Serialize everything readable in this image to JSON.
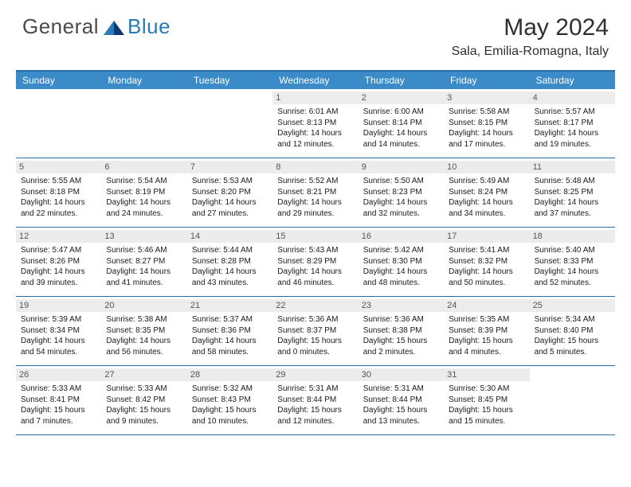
{
  "logo": {
    "text_general": "General",
    "text_blue": "Blue"
  },
  "title": "May 2024",
  "location": "Sala, Emilia-Romagna, Italy",
  "colors": {
    "header_bar": "#3b8bc9",
    "rule": "#2a6ea8",
    "daynum_bg": "#ececec",
    "logo_blue": "#2a7ab8",
    "text": "#1a1a1a"
  },
  "dow": [
    "Sunday",
    "Monday",
    "Tuesday",
    "Wednesday",
    "Thursday",
    "Friday",
    "Saturday"
  ],
  "weeks": [
    [
      {
        "n": "",
        "sr": "",
        "ss": "",
        "dl": ""
      },
      {
        "n": "",
        "sr": "",
        "ss": "",
        "dl": ""
      },
      {
        "n": "",
        "sr": "",
        "ss": "",
        "dl": ""
      },
      {
        "n": "1",
        "sr": "6:01 AM",
        "ss": "8:13 PM",
        "dl": "14 hours and 12 minutes."
      },
      {
        "n": "2",
        "sr": "6:00 AM",
        "ss": "8:14 PM",
        "dl": "14 hours and 14 minutes."
      },
      {
        "n": "3",
        "sr": "5:58 AM",
        "ss": "8:15 PM",
        "dl": "14 hours and 17 minutes."
      },
      {
        "n": "4",
        "sr": "5:57 AM",
        "ss": "8:17 PM",
        "dl": "14 hours and 19 minutes."
      }
    ],
    [
      {
        "n": "5",
        "sr": "5:55 AM",
        "ss": "8:18 PM",
        "dl": "14 hours and 22 minutes."
      },
      {
        "n": "6",
        "sr": "5:54 AM",
        "ss": "8:19 PM",
        "dl": "14 hours and 24 minutes."
      },
      {
        "n": "7",
        "sr": "5:53 AM",
        "ss": "8:20 PM",
        "dl": "14 hours and 27 minutes."
      },
      {
        "n": "8",
        "sr": "5:52 AM",
        "ss": "8:21 PM",
        "dl": "14 hours and 29 minutes."
      },
      {
        "n": "9",
        "sr": "5:50 AM",
        "ss": "8:23 PM",
        "dl": "14 hours and 32 minutes."
      },
      {
        "n": "10",
        "sr": "5:49 AM",
        "ss": "8:24 PM",
        "dl": "14 hours and 34 minutes."
      },
      {
        "n": "11",
        "sr": "5:48 AM",
        "ss": "8:25 PM",
        "dl": "14 hours and 37 minutes."
      }
    ],
    [
      {
        "n": "12",
        "sr": "5:47 AM",
        "ss": "8:26 PM",
        "dl": "14 hours and 39 minutes."
      },
      {
        "n": "13",
        "sr": "5:46 AM",
        "ss": "8:27 PM",
        "dl": "14 hours and 41 minutes."
      },
      {
        "n": "14",
        "sr": "5:44 AM",
        "ss": "8:28 PM",
        "dl": "14 hours and 43 minutes."
      },
      {
        "n": "15",
        "sr": "5:43 AM",
        "ss": "8:29 PM",
        "dl": "14 hours and 46 minutes."
      },
      {
        "n": "16",
        "sr": "5:42 AM",
        "ss": "8:30 PM",
        "dl": "14 hours and 48 minutes."
      },
      {
        "n": "17",
        "sr": "5:41 AM",
        "ss": "8:32 PM",
        "dl": "14 hours and 50 minutes."
      },
      {
        "n": "18",
        "sr": "5:40 AM",
        "ss": "8:33 PM",
        "dl": "14 hours and 52 minutes."
      }
    ],
    [
      {
        "n": "19",
        "sr": "5:39 AM",
        "ss": "8:34 PM",
        "dl": "14 hours and 54 minutes."
      },
      {
        "n": "20",
        "sr": "5:38 AM",
        "ss": "8:35 PM",
        "dl": "14 hours and 56 minutes."
      },
      {
        "n": "21",
        "sr": "5:37 AM",
        "ss": "8:36 PM",
        "dl": "14 hours and 58 minutes."
      },
      {
        "n": "22",
        "sr": "5:36 AM",
        "ss": "8:37 PM",
        "dl": "15 hours and 0 minutes."
      },
      {
        "n": "23",
        "sr": "5:36 AM",
        "ss": "8:38 PM",
        "dl": "15 hours and 2 minutes."
      },
      {
        "n": "24",
        "sr": "5:35 AM",
        "ss": "8:39 PM",
        "dl": "15 hours and 4 minutes."
      },
      {
        "n": "25",
        "sr": "5:34 AM",
        "ss": "8:40 PM",
        "dl": "15 hours and 5 minutes."
      }
    ],
    [
      {
        "n": "26",
        "sr": "5:33 AM",
        "ss": "8:41 PM",
        "dl": "15 hours and 7 minutes."
      },
      {
        "n": "27",
        "sr": "5:33 AM",
        "ss": "8:42 PM",
        "dl": "15 hours and 9 minutes."
      },
      {
        "n": "28",
        "sr": "5:32 AM",
        "ss": "8:43 PM",
        "dl": "15 hours and 10 minutes."
      },
      {
        "n": "29",
        "sr": "5:31 AM",
        "ss": "8:44 PM",
        "dl": "15 hours and 12 minutes."
      },
      {
        "n": "30",
        "sr": "5:31 AM",
        "ss": "8:44 PM",
        "dl": "15 hours and 13 minutes."
      },
      {
        "n": "31",
        "sr": "5:30 AM",
        "ss": "8:45 PM",
        "dl": "15 hours and 15 minutes."
      },
      {
        "n": "",
        "sr": "",
        "ss": "",
        "dl": ""
      }
    ]
  ],
  "labels": {
    "sunrise": "Sunrise:",
    "sunset": "Sunset:",
    "daylight": "Daylight:"
  }
}
